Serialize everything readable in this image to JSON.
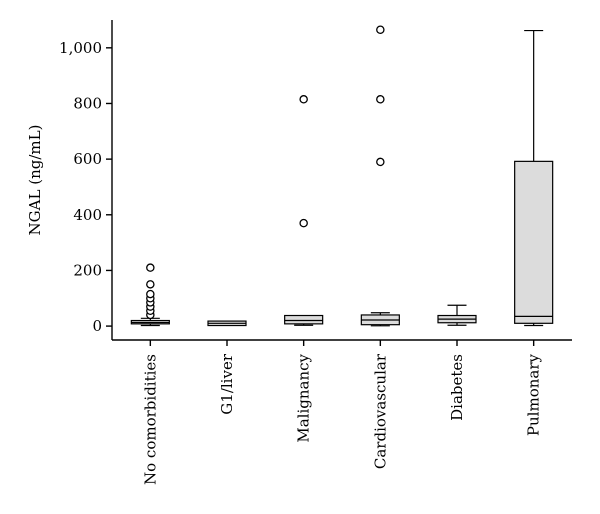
{
  "chart_data": {
    "type": "boxplot",
    "ylabel": "NGAL (ng/mL)",
    "ylim": [
      -50,
      1100
    ],
    "yticks": [
      0,
      200,
      400,
      600,
      800,
      1000
    ],
    "ytick_labels": [
      "0",
      "200",
      "400",
      "600",
      "800",
      "1,000"
    ],
    "grid": false,
    "categories": [
      "No comorbidities",
      "G1/liver",
      "Malignancy",
      "Cardiovascular",
      "Diabetes",
      "Pulmonary"
    ],
    "boxes": [
      {
        "whisker_low": 2,
        "q1": 8,
        "median": 13,
        "q3": 20,
        "whisker_high": 28,
        "outliers": [
          40,
          55,
          70,
          85,
          100,
          115,
          150,
          210
        ]
      },
      {
        "whisker_low": 2,
        "q1": 2,
        "median": 10,
        "q3": 18,
        "whisker_high": 18,
        "outliers": []
      },
      {
        "whisker_low": 3,
        "q1": 8,
        "median": 20,
        "q3": 38,
        "whisker_high": 38,
        "outliers": [
          370,
          815
        ]
      },
      {
        "whisker_low": 1,
        "q1": 5,
        "median": 22,
        "q3": 40,
        "whisker_high": 48,
        "outliers": [
          590,
          815,
          1065
        ]
      },
      {
        "whisker_low": 3,
        "q1": 12,
        "median": 25,
        "q3": 38,
        "whisker_high": 75,
        "outliers": []
      },
      {
        "whisker_low": 2,
        "q1": 10,
        "median": 35,
        "q3": 592,
        "whisker_high": 1062,
        "outliers": []
      }
    ]
  }
}
